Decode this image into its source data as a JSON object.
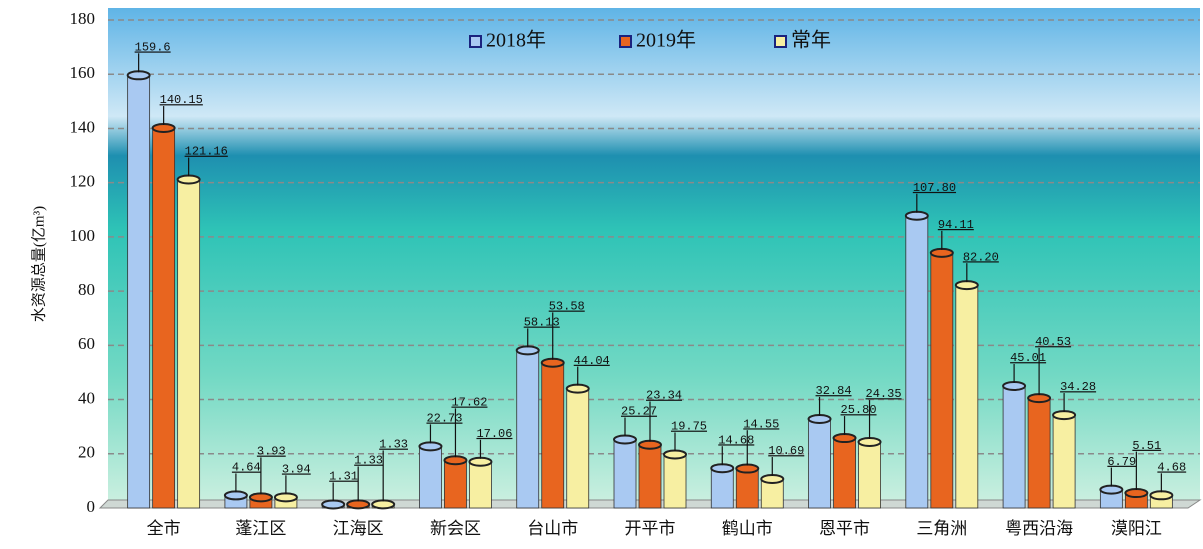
{
  "chart_data": {
    "type": "bar",
    "y_label": "水资源总量(亿m³)",
    "categories": [
      "全市",
      "蓬江区",
      "江海区",
      "新会区",
      "台山市",
      "开平市",
      "鹤山市",
      "恩平市",
      "三角洲",
      "粤西沿海",
      "漠阳江"
    ],
    "series": [
      {
        "name": "2018年",
        "color": "#a9c9f2",
        "values": [
          159.6,
          4.64,
          1.31,
          22.73,
          58.13,
          25.27,
          14.68,
          32.84,
          107.8,
          45.01,
          6.79
        ],
        "value_labels": [
          "159.6",
          "4.64",
          "1.31",
          "22.73",
          "58.13",
          "25.27",
          "14.68",
          "32.84",
          "107.80",
          "45.01",
          "6.79"
        ]
      },
      {
        "name": "2019年",
        "color": "#e8651f",
        "values": [
          140.15,
          3.93,
          1.33,
          17.62,
          53.58,
          23.34,
          14.55,
          25.8,
          94.11,
          40.53,
          5.51
        ],
        "value_labels": [
          "140.15",
          "3.93",
          "1.33",
          "17.62",
          "53.58",
          "23.34",
          "14.55",
          "25.80",
          "94.11",
          "40.53",
          "5.51"
        ]
      },
      {
        "name": "常年",
        "color": "#f7efa2",
        "values": [
          121.16,
          3.94,
          1.33,
          17.06,
          44.04,
          19.75,
          10.69,
          24.35,
          82.2,
          34.28,
          4.68
        ],
        "value_labels": [
          "121.16",
          "3.94",
          "1.33",
          "17.06",
          "44.04",
          "19.75",
          "10.69",
          "24.35",
          "82.20",
          "34.28",
          "4.68"
        ]
      }
    ],
    "ylim": [
      0,
      180
    ],
    "yticks": [
      0,
      20,
      40,
      60,
      80,
      100,
      120,
      140,
      160,
      180
    ],
    "grid": true
  }
}
